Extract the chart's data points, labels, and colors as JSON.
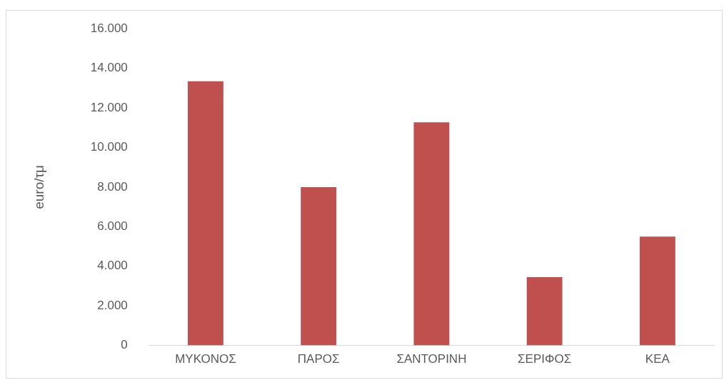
{
  "chart_data": {
    "type": "bar",
    "ylabel": "euro/τμ",
    "categories": [
      "ΜΥΚΟΝΟΣ",
      "ΠΑΡΟΣ",
      "ΣΑΝΤΟΡΙΝΗ",
      "ΣΕΡΙΦΟΣ",
      "ΚΕΑ"
    ],
    "values": [
      13350,
      8000,
      11270,
      3450,
      5500
    ],
    "color": "#c0504d",
    "ylim": [
      0,
      16000
    ],
    "yticks": [
      {
        "value": 0,
        "label": "0"
      },
      {
        "value": 2000,
        "label": "2.000"
      },
      {
        "value": 4000,
        "label": "4.000"
      },
      {
        "value": 6000,
        "label": "6.000"
      },
      {
        "value": 8000,
        "label": "8.000"
      },
      {
        "value": 10000,
        "label": "10.000"
      },
      {
        "value": 12000,
        "label": "12.000"
      },
      {
        "value": 14000,
        "label": "14.000"
      },
      {
        "value": 16000,
        "label": "16.000"
      }
    ],
    "grid": false,
    "legend": false
  }
}
